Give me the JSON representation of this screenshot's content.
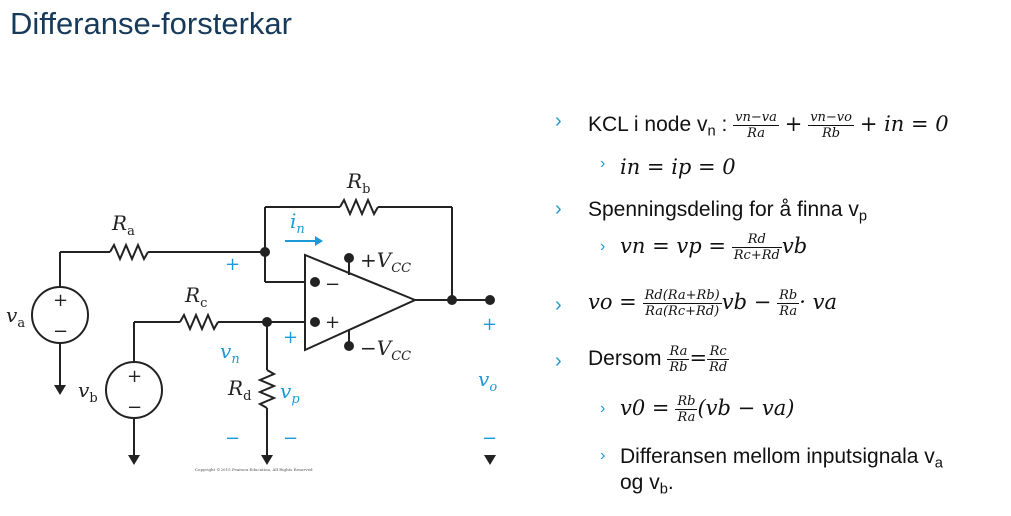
{
  "title": "Differanse-forsterkar",
  "circuit": {
    "labels": {
      "Ra": "R",
      "Ra_sub": "a",
      "Rb": "R",
      "Rb_sub": "b",
      "Rc": "R",
      "Rc_sub": "c",
      "Rd": "R",
      "Rd_sub": "d",
      "in": "i",
      "in_sub": "n",
      "vn": "v",
      "vn_sub": "n",
      "vp": "v",
      "vp_sub": "p",
      "vo": "v",
      "vo_sub": "o",
      "va": "v",
      "va_sub": "a",
      "vb": "v",
      "vb_sub": "b",
      "plus": "+",
      "minus": "−",
      "vcc_pos": "+V",
      "vcc_neg": "−V",
      "cc": "CC",
      "copyright": "Copyright ©2015 Pearson Education, All Rights Reserved"
    }
  },
  "bullets": {
    "kcl_prefix": "KCL i node v",
    "kcl_sub": "n",
    "kcl_colon": ":",
    "kcl_f1_num": "vn−va",
    "kcl_f1_den": "Ra",
    "kcl_f2_num": "vn−vo",
    "kcl_f2_den": "Rb",
    "kcl_tail": "+ in = 0",
    "sub1": "in = ip = 0",
    "spenning_prefix": "Spenningsdeling for å finna v",
    "spenning_sub": "p",
    "sub2_lhs": "vn = vp =",
    "sub2_num": "Rd",
    "sub2_den": "Rc+Rd",
    "sub2_tail": "vb",
    "vo_lhs": "vo =",
    "vo_f1_num": "Rd(Ra+Rb)",
    "vo_f1_den": "Ra(Rc+Rd)",
    "vo_mid": "vb −",
    "vo_f2_num": "Rb",
    "vo_f2_den": "Ra",
    "vo_tail": "· va",
    "dersom": "Dersom",
    "dersom_f1_num": "Ra",
    "dersom_f1_den": "Rb",
    "dersom_eq": "=",
    "dersom_f2_num": "Rc",
    "dersom_f2_den": "Rd",
    "sub3_lhs": "v0 =",
    "sub3_num": "Rb",
    "sub3_den": "Ra",
    "sub3_tail": "(vb − va)",
    "diff_line1": "Differansen mellom inputsignala v",
    "diff_sub1": "a",
    "diff_line2": "og v",
    "diff_sub2": "b",
    "diff_end": ".",
    "chevron": "›"
  },
  "colors": {
    "accent": "#1a9bd7",
    "title": "#173a5a"
  }
}
